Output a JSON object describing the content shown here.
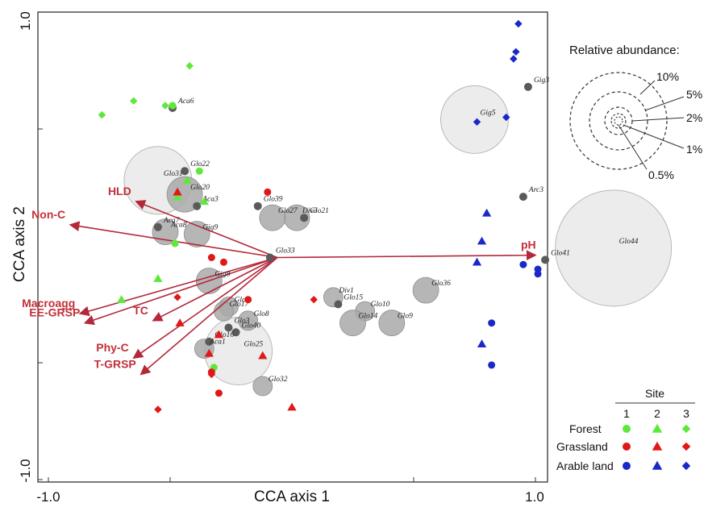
{
  "chart_data": {
    "type": "scatter",
    "xlabel": "CCA axis 1",
    "ylabel": "CCA axis 2",
    "xlim": [
      -1.0,
      1.0
    ],
    "ylim": [
      -1.0,
      1.0
    ],
    "x_tick_labels": [
      {
        "value": -1.0,
        "label": "-1.0"
      },
      {
        "value": 1.0,
        "label": "1.0"
      }
    ],
    "y_tick_labels": [
      {
        "value": 1.0,
        "label": "1.0"
      },
      {
        "value": -1.0,
        "label": "-1.0"
      }
    ],
    "minor_ticks": [
      -0.5,
      0.5
    ],
    "colors": {
      "forest": "#5ee83a",
      "grassland": "#e01818",
      "arable": "#1a28c8",
      "env": "#b4283a",
      "species": "#5a5a5a",
      "bubble": "#a9a9a9"
    },
    "environmental_vectors": [
      {
        "label": "pH",
        "x": 1.0,
        "y": -0.04
      },
      {
        "label": "HLD",
        "x": -0.64,
        "y": 0.19
      },
      {
        "label": "Non-C",
        "x": -0.91,
        "y": 0.09
      },
      {
        "label": "Macroagg",
        "x": -0.87,
        "y": -0.29
      },
      {
        "label": "EE-GRSP",
        "x": -0.85,
        "y": -0.33
      },
      {
        "label": "TC",
        "x": -0.57,
        "y": -0.32
      },
      {
        "label": "Phy-C",
        "x": -0.65,
        "y": -0.48
      },
      {
        "label": "T-GRSP",
        "x": -0.62,
        "y": -0.55
      }
    ],
    "species": [
      {
        "name": "Aca6",
        "x": -0.49,
        "y": 0.59,
        "abundance": 0
      },
      {
        "name": "Gig3",
        "x": 0.97,
        "y": 0.68,
        "abundance": 0
      },
      {
        "name": "Gig5",
        "x": 0.75,
        "y": 0.54,
        "abundance": 5
      },
      {
        "name": "Glo31",
        "x": -0.55,
        "y": 0.28,
        "abundance": 5
      },
      {
        "name": "Glo22",
        "x": -0.44,
        "y": 0.32,
        "abundance": 0
      },
      {
        "name": "Glo20",
        "x": -0.44,
        "y": 0.22,
        "abundance": 2
      },
      {
        "name": "Aca3",
        "x": -0.39,
        "y": 0.17,
        "abundance": 0
      },
      {
        "name": "Glo39",
        "x": -0.14,
        "y": 0.17,
        "abundance": 0
      },
      {
        "name": "Glo21",
        "x": 0.05,
        "y": 0.12,
        "abundance": 0
      },
      {
        "name": "Div3",
        "x": 0.02,
        "y": 0.12,
        "abundance": 1
      },
      {
        "name": "Glo27",
        "x": -0.08,
        "y": 0.12,
        "abundance": 1
      },
      {
        "name": "Aca7",
        "x": -0.55,
        "y": 0.08,
        "abundance": 0
      },
      {
        "name": "Aca8",
        "x": -0.52,
        "y": 0.06,
        "abundance": 1
      },
      {
        "name": "Gig9",
        "x": -0.39,
        "y": 0.05,
        "abundance": 1
      },
      {
        "name": "Glo33",
        "x": -0.09,
        "y": -0.05,
        "abundance": 0
      },
      {
        "name": "Arc3",
        "x": 0.95,
        "y": 0.21,
        "abundance": 0
      },
      {
        "name": "Glo44",
        "x": 1.32,
        "y": -0.01,
        "abundance": 10
      },
      {
        "name": "Glo41",
        "x": 1.04,
        "y": -0.06,
        "abundance": 0
      },
      {
        "name": "Gig8",
        "x": -0.34,
        "y": -0.15,
        "abundance": 1
      },
      {
        "name": "Glo6",
        "x": -0.26,
        "y": -0.26,
        "abundance": 0.5
      },
      {
        "name": "Glo17",
        "x": -0.28,
        "y": -0.28,
        "abundance": 0.5
      },
      {
        "name": "Glo8",
        "x": -0.18,
        "y": -0.32,
        "abundance": 0.5
      },
      {
        "name": "Glo3",
        "x": -0.26,
        "y": -0.35,
        "abundance": 0
      },
      {
        "name": "Glo40",
        "x": -0.23,
        "y": -0.37,
        "abundance": 0
      },
      {
        "name": "Div1",
        "x": 0.17,
        "y": -0.22,
        "abundance": 0.5
      },
      {
        "name": "Glo15",
        "x": 0.19,
        "y": -0.25,
        "abundance": 0
      },
      {
        "name": "Glo10",
        "x": 0.3,
        "y": -0.28,
        "abundance": 0.5
      },
      {
        "name": "Glo36",
        "x": 0.55,
        "y": -0.19,
        "abundance": 1
      },
      {
        "name": "Glo14",
        "x": 0.25,
        "y": -0.33,
        "abundance": 1
      },
      {
        "name": "Glo9",
        "x": 0.41,
        "y": -0.33,
        "abundance": 1
      },
      {
        "name": "Glo16",
        "x": -0.34,
        "y": -0.41,
        "abundance": 0
      },
      {
        "name": "Glo25",
        "x": -0.22,
        "y": -0.45,
        "abundance": 5
      },
      {
        "name": "Aca1",
        "x": -0.36,
        "y": -0.44,
        "abundance": 0.5
      },
      {
        "name": "Glo32",
        "x": -0.12,
        "y": -0.6,
        "abundance": 0.5
      }
    ],
    "samples": [
      {
        "site": "forest",
        "block": 1,
        "x": -0.49,
        "y": 0.6
      },
      {
        "site": "forest",
        "block": 1,
        "x": -0.49,
        "y": 0.6
      },
      {
        "site": "forest",
        "block": 1,
        "x": -0.38,
        "y": 0.32
      },
      {
        "site": "forest",
        "block": 1,
        "x": -0.32,
        "y": -0.52
      },
      {
        "site": "forest",
        "block": 1,
        "x": -0.48,
        "y": 0.01
      },
      {
        "site": "forest",
        "block": 2,
        "x": -0.43,
        "y": 0.28
      },
      {
        "site": "forest",
        "block": 2,
        "x": -0.36,
        "y": 0.19
      },
      {
        "site": "forest",
        "block": 2,
        "x": -0.47,
        "y": 0.21
      },
      {
        "site": "forest",
        "block": 2,
        "x": -0.55,
        "y": -0.14
      },
      {
        "site": "forest",
        "block": 2,
        "x": -0.7,
        "y": -0.23
      },
      {
        "site": "forest",
        "block": 3,
        "x": -0.42,
        "y": 0.77
      },
      {
        "site": "forest",
        "block": 3,
        "x": -0.65,
        "y": 0.62
      },
      {
        "site": "forest",
        "block": 3,
        "x": -0.52,
        "y": 0.6
      },
      {
        "site": "forest",
        "block": 3,
        "x": -0.78,
        "y": 0.56
      },
      {
        "site": "grassland",
        "block": 1,
        "x": -0.1,
        "y": 0.23
      },
      {
        "site": "grassland",
        "block": 1,
        "x": -0.33,
        "y": -0.05
      },
      {
        "site": "grassland",
        "block": 1,
        "x": -0.28,
        "y": -0.07
      },
      {
        "site": "grassland",
        "block": 1,
        "x": -0.18,
        "y": -0.23
      },
      {
        "site": "grassland",
        "block": 1,
        "x": -0.3,
        "y": -0.63
      },
      {
        "site": "grassland",
        "block": 1,
        "x": -0.33,
        "y": -0.54
      },
      {
        "site": "grassland",
        "block": 2,
        "x": -0.47,
        "y": 0.23
      },
      {
        "site": "grassland",
        "block": 2,
        "x": -0.46,
        "y": -0.33
      },
      {
        "site": "grassland",
        "block": 2,
        "x": -0.3,
        "y": -0.38
      },
      {
        "site": "grassland",
        "block": 2,
        "x": -0.34,
        "y": -0.46
      },
      {
        "site": "grassland",
        "block": 2,
        "x": -0.12,
        "y": -0.47
      },
      {
        "site": "grassland",
        "block": 2,
        "x": 0.0,
        "y": -0.69
      },
      {
        "site": "grassland",
        "block": 3,
        "x": -0.47,
        "y": -0.22
      },
      {
        "site": "grassland",
        "block": 3,
        "x": 0.09,
        "y": -0.23
      },
      {
        "site": "grassland",
        "block": 3,
        "x": -0.33,
        "y": -0.55
      },
      {
        "site": "grassland",
        "block": 3,
        "x": -0.55,
        "y": -0.7
      },
      {
        "site": "arable",
        "block": 1,
        "x": 1.01,
        "y": -0.1
      },
      {
        "site": "arable",
        "block": 1,
        "x": 1.01,
        "y": -0.12
      },
      {
        "site": "arable",
        "block": 1,
        "x": 0.95,
        "y": -0.08
      },
      {
        "site": "arable",
        "block": 1,
        "x": 0.82,
        "y": -0.33
      },
      {
        "site": "arable",
        "block": 1,
        "x": 0.82,
        "y": -0.51
      },
      {
        "site": "arable",
        "block": 2,
        "x": 0.8,
        "y": 0.14
      },
      {
        "site": "arable",
        "block": 2,
        "x": 0.78,
        "y": 0.02
      },
      {
        "site": "arable",
        "block": 2,
        "x": 0.76,
        "y": -0.07
      },
      {
        "site": "arable",
        "block": 2,
        "x": 0.78,
        "y": -0.42
      },
      {
        "site": "arable",
        "block": 3,
        "x": 0.93,
        "y": 0.95
      },
      {
        "site": "arable",
        "block": 3,
        "x": 0.92,
        "y": 0.83
      },
      {
        "site": "arable",
        "block": 3,
        "x": 0.91,
        "y": 0.8
      },
      {
        "site": "arable",
        "block": 3,
        "x": 0.88,
        "y": 0.55
      },
      {
        "site": "arable",
        "block": 3,
        "x": 0.76,
        "y": 0.53
      }
    ]
  },
  "abundance_legend": {
    "title": "Relative abundance:",
    "levels": [
      "10%",
      "5%",
      "2%",
      "1%",
      "0.5%"
    ]
  },
  "site_legend": {
    "title": "Site",
    "columns": [
      "1",
      "2",
      "3"
    ],
    "rows": [
      {
        "label": "Forest",
        "color_key": "forest"
      },
      {
        "label": "Grassland",
        "color_key": "grassland"
      },
      {
        "label": "Arable land",
        "color_key": "arable"
      }
    ]
  }
}
